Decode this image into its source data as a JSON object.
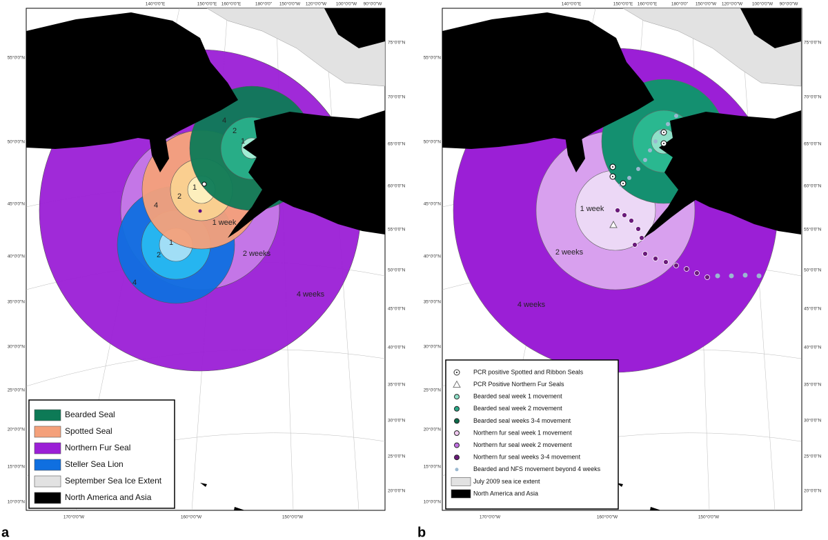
{
  "panels": [
    {
      "letter": "a",
      "top_labels": [
        "140°0'0\"E",
        "150°0'0\"E",
        "160°0'0\"E",
        "180°0'0\"",
        "150°0'0\"W",
        "120°0'0\"W",
        "100°0'0\"W",
        "90°0'0\"W"
      ],
      "left_labels": [
        "55°0'0\"N",
        "50°0'0\"N",
        "45°0'0\"N",
        "40°0'0\"N",
        "35°0'0\"N",
        "30°0'0\"N",
        "25°0'0\"N",
        "20°0'0\"N",
        "15°0'0\"N",
        "10°0'0\"N"
      ],
      "right_labels": [
        "75°0'0\"N",
        "70°0'0\"N",
        "65°0'0\"N",
        "60°0'0\"N",
        "55°0'0\"N",
        "50°0'0\"N",
        "45°0'0\"N",
        "40°0'0\"N",
        "35°0'0\"N",
        "30°0'0\"N",
        "25°0'0\"N",
        "20°0'0\"N"
      ],
      "bottom_labels": [
        "170°0'0\"W",
        "160°0'0\"W",
        "150°0'0\"W"
      ],
      "ring_labels": [
        "4",
        "2",
        "1",
        "1",
        "2",
        "4",
        "1 week",
        "2 weeks",
        "4 weeks",
        "1",
        "2",
        "4"
      ],
      "legend": [
        {
          "label": "Bearded Seal",
          "symbol": "box",
          "color": "#0d7a56"
        },
        {
          "label": "Spotted Seal",
          "symbol": "box",
          "color": "#f4a07a"
        },
        {
          "label": "Northern Fur Seal",
          "symbol": "box",
          "color": "#9b1fd6"
        },
        {
          "label": "Steller Sea Lion",
          "symbol": "box",
          "color": "#0f6fe0"
        },
        {
          "label": "September Sea Ice Extent",
          "symbol": "box",
          "color": "#e2e2e2"
        },
        {
          "label": "North America and Asia",
          "symbol": "box",
          "color": "#000000"
        }
      ]
    },
    {
      "letter": "b",
      "top_labels": [
        "140°0'0\"E",
        "150°0'0\"E",
        "160°0'0\"E",
        "180°0'0\"",
        "150°0'0\"W",
        "120°0'0\"W",
        "100°0'0\"W",
        "90°0'0\"W"
      ],
      "left_labels": [
        "55°0'0\"N",
        "50°0'0\"N",
        "45°0'0\"N",
        "40°0'0\"N",
        "35°0'0\"N",
        "30°0'0\"N",
        "25°0'0\"N",
        "20°0'0\"N",
        "15°0'0\"N",
        "10°0'0\"N"
      ],
      "right_labels": [
        "75°0'0\"N",
        "70°0'0\"N",
        "65°0'0\"N",
        "60°0'0\"N",
        "55°0'0\"N",
        "50°0'0\"N",
        "45°0'0\"N",
        "40°0'0\"N",
        "35°0'0\"N",
        "30°0'0\"N",
        "25°0'0\"N",
        "20°0'0\"N"
      ],
      "bottom_labels": [
        "170°0'0\"W",
        "160°0'0\"W",
        "150°0'0\"W"
      ],
      "ring_labels": [
        "1 week",
        "2 weeks",
        "4 weeks"
      ],
      "legend": [
        {
          "label": "PCR positive Spotted and Ribbon Seals",
          "symbol": "target",
          "color": "#ffffff"
        },
        {
          "label": "PCR Positive Northern Fur Seals",
          "symbol": "triangle",
          "color": "#ffffff"
        },
        {
          "label": "Bearded seal week 1 movement",
          "symbol": "circle",
          "color": "#8fe0c8"
        },
        {
          "label": "Bearded seal week 2 movement",
          "symbol": "circle",
          "color": "#2aa886"
        },
        {
          "label": "Bearded seal weeks 3-4 movement",
          "symbol": "circle",
          "color": "#0d6b4a"
        },
        {
          "label": "Northern fur seal week 1 movement",
          "symbol": "circle",
          "color": "#f0c8f0"
        },
        {
          "label": "Northern fur seal week 2 movement",
          "symbol": "circle",
          "color": "#c070e0"
        },
        {
          "label": "Northern fur seal weeks 3-4 movement",
          "symbol": "circle",
          "color": "#6a1a7a"
        },
        {
          "label": "Bearded and NFS movement beyond 4 weeks",
          "symbol": "dot",
          "color": "#9ab8d0"
        },
        {
          "label": "July 2009 sea ice extent",
          "symbol": "box",
          "color": "#e2e2e2"
        },
        {
          "label": "North America and Asia",
          "symbol": "box",
          "color": "#000000"
        }
      ]
    }
  ]
}
